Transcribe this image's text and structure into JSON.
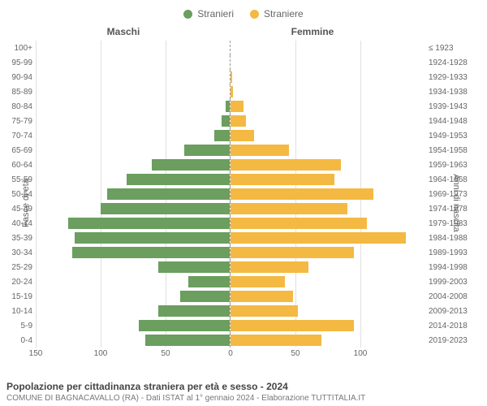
{
  "population_pyramid": {
    "type": "population-pyramid",
    "legend": {
      "male_label": "Stranieri",
      "female_label": "Straniere"
    },
    "column_headers": {
      "left": "Maschi",
      "right": "Femmine"
    },
    "axis_labels": {
      "left": "Fasce di età",
      "right": "Anni di nascita"
    },
    "title": "Popolazione per cittadinanza straniera per età e sesso - 2024",
    "subtitle": "COMUNE DI BAGNACAVALLO (RA) - Dati ISTAT al 1° gennaio 2024 - Elaborazione TUTTITALIA.IT",
    "male_color": "#6b9e5f",
    "female_color": "#f4b942",
    "background_color": "#ffffff",
    "grid_color": "#e0e0e0",
    "text_color": "#666666",
    "bar_height_ratio": 0.78,
    "x_max": 150,
    "x_ticks_left": [
      150,
      100,
      50,
      0
    ],
    "x_ticks_right": [
      0,
      50,
      100
    ],
    "age_bands": [
      "100+",
      "95-99",
      "90-94",
      "85-89",
      "80-84",
      "75-79",
      "70-74",
      "65-69",
      "60-64",
      "55-59",
      "50-54",
      "45-49",
      "40-44",
      "35-39",
      "30-34",
      "25-29",
      "20-24",
      "15-19",
      "10-14",
      "5-9",
      "0-4"
    ],
    "birth_years": [
      "≤ 1923",
      "1924-1928",
      "1929-1933",
      "1934-1938",
      "1939-1943",
      "1944-1948",
      "1949-1953",
      "1954-1958",
      "1959-1963",
      "1964-1968",
      "1969-1973",
      "1974-1978",
      "1979-1983",
      "1984-1988",
      "1989-1993",
      "1994-1998",
      "1999-2003",
      "2004-2008",
      "2009-2013",
      "2014-2018",
      "2019-2023"
    ],
    "male_values": [
      0,
      0,
      0,
      0,
      3,
      6,
      12,
      35,
      60,
      80,
      95,
      100,
      125,
      120,
      122,
      55,
      32,
      38,
      55,
      70,
      65
    ],
    "female_values": [
      0,
      0,
      1,
      2,
      10,
      12,
      18,
      45,
      85,
      80,
      110,
      90,
      105,
      135,
      95,
      60,
      42,
      48,
      52,
      95,
      70
    ]
  }
}
